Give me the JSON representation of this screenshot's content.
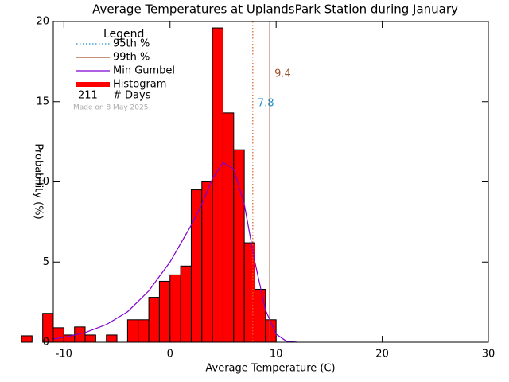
{
  "chart_data": {
    "type": "histogram",
    "title": "Average Temperatures at UplandsPark Station during January",
    "x_label": "Average Temperature (C)",
    "y_label": "Probability (%)",
    "xlim": [
      -11,
      30
    ],
    "ylim": [
      0,
      20
    ],
    "xticks": [
      -10,
      0,
      10,
      20,
      30
    ],
    "yticks": [
      0,
      5,
      10,
      15,
      20
    ],
    "bins": [
      -14,
      -13,
      -12,
      -11,
      -10,
      -9,
      -8,
      -7,
      -6,
      -5,
      -4,
      -3,
      -2,
      -1,
      0,
      1,
      2,
      3,
      4,
      5,
      6,
      7,
      8,
      9,
      10
    ],
    "values": [
      0.4,
      0,
      1.8,
      0.9,
      0.45,
      0.95,
      0.45,
      0,
      0.45,
      0,
      1.4,
      1.4,
      2.8,
      3.8,
      4.2,
      4.75,
      9.5,
      10.0,
      19.6,
      14.3,
      12.0,
      6.2,
      3.3,
      1.4
    ],
    "color": "#ff0000",
    "edgecolor": "#000000",
    "curve": {
      "name": "Min Gumbel",
      "color": "#8000d0",
      "x": [
        -11,
        -10,
        -8,
        -6,
        -4,
        -2,
        0,
        2,
        3,
        4,
        5,
        6,
        7,
        8,
        9,
        10,
        11,
        12
      ],
      "values": [
        0.2,
        0.3,
        0.6,
        1.1,
        1.9,
        3.2,
        5.0,
        7.3,
        8.6,
        10.2,
        11.2,
        10.8,
        8.6,
        5.0,
        2.0,
        0.5,
        0.05,
        0
      ]
    },
    "percentiles": [
      {
        "name": "95th %",
        "value": 7.8,
        "color": "#1a8fd0",
        "line_color": "#e06020",
        "style": "dotted"
      },
      {
        "name": "99th %",
        "value": 9.4,
        "color": "#a0522d",
        "line_color": "#a0522d",
        "style": "solid"
      }
    ],
    "legend": {
      "title": "Legend",
      "histogram": "Histogram",
      "days": 211,
      "days_label": "# Days"
    },
    "note": "Made on 8 May 2025"
  }
}
